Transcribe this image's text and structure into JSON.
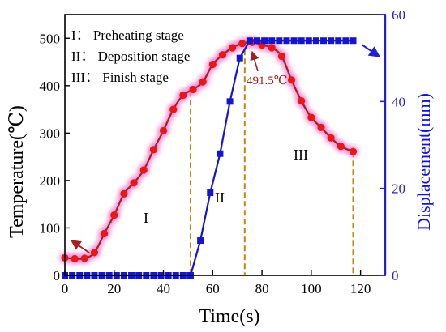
{
  "chart_data": {
    "type": "line",
    "xlabel": "Time(s)",
    "ylabel_left": "Temperature(℃)",
    "ylabel_right": "Displacement(mm)",
    "xlim": [
      0,
      130
    ],
    "ylim_left": [
      0,
      550
    ],
    "ylim_right": [
      0,
      60
    ],
    "x_ticks": [
      0,
      20,
      40,
      60,
      80,
      100,
      120
    ],
    "y_ticks_left": [
      0,
      100,
      200,
      300,
      400,
      500
    ],
    "y_ticks_right": [
      0,
      20,
      40,
      60
    ],
    "legend_lines": [
      "I： Preheating stage",
      "II： Deposition stage",
      "III： Finish stage"
    ],
    "stage_labels": [
      "I",
      "II",
      "III"
    ],
    "peak_label": "491.5℃",
    "stage_boundaries_x": [
      51,
      73,
      117
    ],
    "colors": {
      "temperature": "#a32020",
      "temperature_marker": "#e81818",
      "displacement": "#1515d0",
      "displacement_axis": "#2222cc",
      "boundary": "#c08a10",
      "glow": "#ee7fd2"
    },
    "series": [
      {
        "axis": "left",
        "x": [
          0,
          4,
          8,
          12,
          16,
          20,
          24,
          28,
          32,
          36,
          40,
          44,
          48,
          52,
          56,
          60,
          64,
          68,
          72,
          76,
          80,
          84,
          88,
          92,
          96,
          100,
          104,
          108,
          112,
          117
        ],
        "values": [
          37,
          35,
          36,
          48,
          88,
          127,
          172,
          195,
          222,
          265,
          305,
          350,
          380,
          392,
          408,
          445,
          465,
          480,
          489,
          491.5,
          486,
          480,
          462,
          412,
          368,
          333,
          312,
          290,
          272,
          261
        ]
      },
      {
        "axis": "right",
        "x": [
          0,
          3,
          6,
          9,
          12,
          15,
          18,
          21,
          24,
          27,
          30,
          33,
          36,
          39,
          42,
          45,
          48,
          51,
          55,
          59,
          63,
          67,
          71,
          75,
          78,
          81,
          84,
          87,
          90,
          93,
          96,
          99,
          102,
          105,
          108,
          111,
          114,
          117
        ],
        "values": [
          0,
          0,
          0,
          0,
          0,
          0,
          0,
          0,
          0,
          0,
          0,
          0,
          0,
          0,
          0,
          0,
          0,
          0,
          8,
          19,
          28,
          40,
          50,
          54,
          54,
          54,
          54,
          54,
          54,
          54,
          54,
          54,
          54,
          54,
          54,
          54,
          54,
          54
        ]
      }
    ]
  }
}
